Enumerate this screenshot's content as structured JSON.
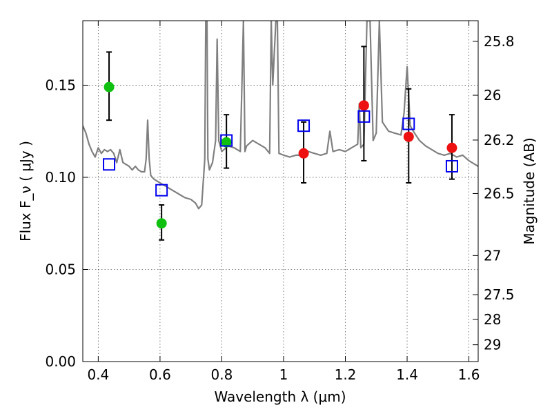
{
  "chart_data": {
    "type": "scatter",
    "xlabel": "Wavelength  λ (μm)",
    "ylabel": "Flux  F_ν  ( μJy )",
    "y2label": "Magnitude (AB)",
    "xlim": [
      0.35,
      1.63
    ],
    "ylim": [
      0.0,
      0.185
    ],
    "x_ticks": [
      0.4,
      0.6,
      0.8,
      1.0,
      1.2,
      1.4,
      1.6
    ],
    "x_tick_labels": [
      "0.4",
      "0.6",
      "0.8",
      "1",
      "1.2",
      "1.4",
      "1.6"
    ],
    "y_ticks": [
      0.0,
      0.05,
      0.1,
      0.15
    ],
    "y_tick_labels": [
      "0.00",
      "0.05",
      "0.10",
      "0.15"
    ],
    "y2_ticks": [
      25.8,
      26,
      26.2,
      26.5,
      27,
      27.5,
      28,
      29
    ],
    "y2_tick_labels": [
      "25.8",
      "26",
      "26.2",
      "26.5",
      "27",
      "27.5",
      "28",
      "29"
    ],
    "grid": true,
    "colors": {
      "model": "#808080",
      "green": "#10c010",
      "red": "#ee1111",
      "blue": "#0000ee",
      "errorbar": "#000000"
    },
    "series": [
      {
        "kind": "line",
        "points": [
          [
            0.35,
            0.128
          ],
          [
            0.36,
            0.124
          ],
          [
            0.37,
            0.118
          ],
          [
            0.38,
            0.114
          ],
          [
            0.39,
            0.111
          ],
          [
            0.4,
            0.116
          ],
          [
            0.41,
            0.113
          ],
          [
            0.42,
            0.115
          ],
          [
            0.43,
            0.114
          ],
          [
            0.44,
            0.115
          ],
          [
            0.45,
            0.113
          ],
          [
            0.46,
            0.108
          ],
          [
            0.47,
            0.115
          ],
          [
            0.48,
            0.108
          ],
          [
            0.49,
            0.107
          ],
          [
            0.5,
            0.106
          ],
          [
            0.51,
            0.104
          ],
          [
            0.52,
            0.106
          ],
          [
            0.53,
            0.104
          ],
          [
            0.54,
            0.103
          ],
          [
            0.55,
            0.103
          ],
          [
            0.555,
            0.11
          ],
          [
            0.56,
            0.131
          ],
          [
            0.565,
            0.11
          ],
          [
            0.57,
            0.101
          ],
          [
            0.58,
            0.099
          ],
          [
            0.6,
            0.097
          ],
          [
            0.62,
            0.095
          ],
          [
            0.64,
            0.093
          ],
          [
            0.66,
            0.091
          ],
          [
            0.68,
            0.089
          ],
          [
            0.7,
            0.088
          ],
          [
            0.715,
            0.086
          ],
          [
            0.725,
            0.083
          ],
          [
            0.735,
            0.085
          ],
          [
            0.745,
            0.11
          ],
          [
            0.748,
            0.185
          ],
          [
            0.752,
            0.185
          ],
          [
            0.755,
            0.11
          ],
          [
            0.76,
            0.104
          ],
          [
            0.77,
            0.108
          ],
          [
            0.78,
            0.12
          ],
          [
            0.785,
            0.175
          ],
          [
            0.79,
            0.12
          ],
          [
            0.8,
            0.114
          ],
          [
            0.82,
            0.117
          ],
          [
            0.84,
            0.116
          ],
          [
            0.86,
            0.114
          ],
          [
            0.87,
            0.185
          ],
          [
            0.875,
            0.114
          ],
          [
            0.88,
            0.117
          ],
          [
            0.9,
            0.12
          ],
          [
            0.92,
            0.118
          ],
          [
            0.94,
            0.116
          ],
          [
            0.955,
            0.113
          ],
          [
            0.96,
            0.185
          ],
          [
            0.965,
            0.15
          ],
          [
            0.975,
            0.185
          ],
          [
            0.98,
            0.185
          ],
          [
            0.985,
            0.113
          ],
          [
            1.0,
            0.112
          ],
          [
            1.02,
            0.111
          ],
          [
            1.04,
            0.112
          ],
          [
            1.06,
            0.112
          ],
          [
            1.08,
            0.114
          ],
          [
            1.1,
            0.113
          ],
          [
            1.12,
            0.112
          ],
          [
            1.14,
            0.113
          ],
          [
            1.15,
            0.125
          ],
          [
            1.16,
            0.114
          ],
          [
            1.18,
            0.115
          ],
          [
            1.2,
            0.114
          ],
          [
            1.22,
            0.116
          ],
          [
            1.24,
            0.118
          ],
          [
            1.245,
            0.14
          ],
          [
            1.25,
            0.116
          ],
          [
            1.26,
            0.118
          ],
          [
            1.27,
            0.185
          ],
          [
            1.28,
            0.185
          ],
          [
            1.29,
            0.12
          ],
          [
            1.3,
            0.124
          ],
          [
            1.31,
            0.185
          ],
          [
            1.32,
            0.13
          ],
          [
            1.34,
            0.125
          ],
          [
            1.36,
            0.124
          ],
          [
            1.38,
            0.123
          ],
          [
            1.39,
            0.135
          ],
          [
            1.4,
            0.16
          ],
          [
            1.41,
            0.128
          ],
          [
            1.42,
            0.125
          ],
          [
            1.44,
            0.12
          ],
          [
            1.46,
            0.117
          ],
          [
            1.48,
            0.115
          ],
          [
            1.5,
            0.113
          ],
          [
            1.52,
            0.112
          ],
          [
            1.54,
            0.113
          ],
          [
            1.56,
            0.111
          ],
          [
            1.58,
            0.112
          ],
          [
            1.6,
            0.109
          ],
          [
            1.62,
            0.107
          ],
          [
            1.63,
            0.106
          ]
        ]
      },
      {
        "kind": "points-with-errors",
        "marker": "circle",
        "color": "green",
        "points": [
          {
            "x": 0.435,
            "y": 0.149,
            "yerr_low": 0.131,
            "yerr_high": 0.168
          },
          {
            "x": 0.605,
            "y": 0.075,
            "yerr_low": 0.066,
            "yerr_high": 0.085
          },
          {
            "x": 0.815,
            "y": 0.119,
            "yerr_low": 0.105,
            "yerr_high": 0.134
          }
        ]
      },
      {
        "kind": "points-with-errors",
        "marker": "circle",
        "color": "red",
        "points": [
          {
            "x": 1.065,
            "y": 0.113,
            "yerr_low": 0.097,
            "yerr_high": 0.13
          },
          {
            "x": 1.26,
            "y": 0.139,
            "yerr_low": 0.109,
            "yerr_high": 0.171
          },
          {
            "x": 1.405,
            "y": 0.122,
            "yerr_low": 0.097,
            "yerr_high": 0.148
          },
          {
            "x": 1.545,
            "y": 0.116,
            "yerr_low": 0.099,
            "yerr_high": 0.134
          }
        ]
      },
      {
        "kind": "points",
        "marker": "square",
        "color": "blue",
        "points": [
          {
            "x": 0.435,
            "y": 0.107
          },
          {
            "x": 0.605,
            "y": 0.093
          },
          {
            "x": 0.815,
            "y": 0.12
          },
          {
            "x": 1.065,
            "y": 0.128
          },
          {
            "x": 1.26,
            "y": 0.133
          },
          {
            "x": 1.405,
            "y": 0.129
          },
          {
            "x": 1.545,
            "y": 0.106
          }
        ]
      }
    ]
  }
}
